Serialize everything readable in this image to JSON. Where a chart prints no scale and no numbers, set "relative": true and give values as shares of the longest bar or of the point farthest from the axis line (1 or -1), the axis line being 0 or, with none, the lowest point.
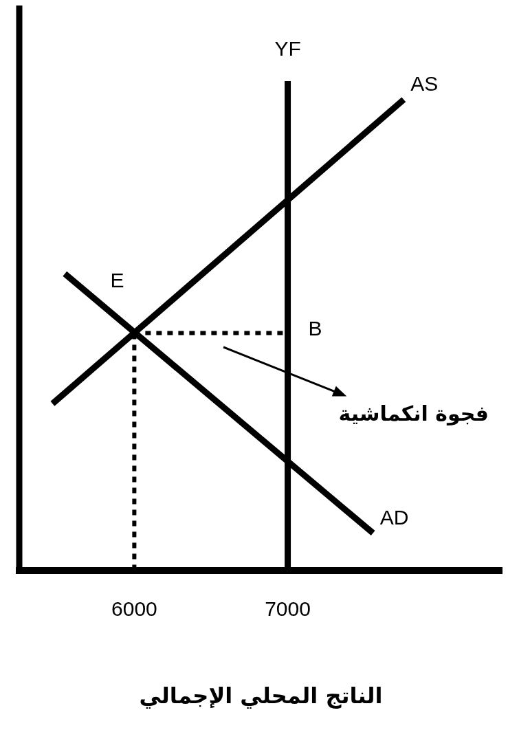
{
  "chart_data": {
    "type": "line",
    "relative": true,
    "xlabel": "الناتج المحلي الإجمالي",
    "xlim": [
      5250,
      8400
    ],
    "xticks": [
      6000,
      7000
    ],
    "grid": false,
    "legend": false,
    "marker": "none",
    "series": [
      {
        "name": "AS",
        "color": "#000000",
        "x": [
          5467,
          7756
        ],
        "values": [
          0.354,
          1
        ]
      },
      {
        "name": "AD",
        "color": "#000000",
        "x": [
          5547,
          7556
        ],
        "values": [
          0.63,
          0.079
        ]
      },
      {
        "color": "#000000",
        "line_style": "dotted",
        "x": [
          6000,
          7000
        ],
        "values": [
          0.504,
          0.504
        ]
      },
      {
        "color": "#000000",
        "line_style": "dotted",
        "x": [
          6000,
          6000
        ],
        "values": [
          0,
          0.504
        ]
      }
    ],
    "ref_lines": [
      {
        "axis": "x",
        "value": 7000,
        "label": "YF",
        "color": "#000000"
      },
      {
        "axis": "x",
        "value": 5250,
        "color": "#000000"
      }
    ],
    "annotations": [
      {
        "text": "E",
        "x": 6000,
        "y": 0.504
      },
      {
        "text": "B",
        "x": 7000,
        "y": 0.504
      },
      "فجوة انكماشية"
    ]
  }
}
